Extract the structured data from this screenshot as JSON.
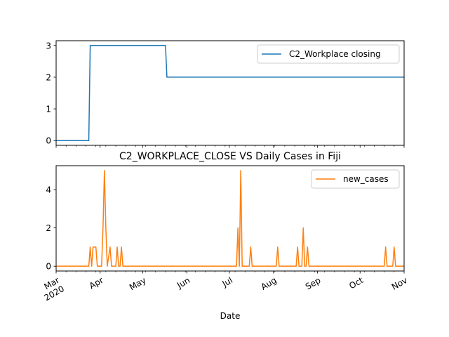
{
  "chart_data": [
    {
      "type": "line",
      "title": "",
      "xlabel": "",
      "ylabel": "",
      "x_range": [
        "2020-03-01",
        "2020-11-01"
      ],
      "ylim": [
        -0.15,
        3.15
      ],
      "y_ticks": [
        0,
        1,
        2,
        3
      ],
      "grid": false,
      "legend_position": "top-right",
      "series": [
        {
          "name": "C2_Workplace closing",
          "color": "#1f77b4",
          "points": [
            [
              "2020-03-01",
              0
            ],
            [
              "2020-03-24",
              0
            ],
            [
              "2020-03-25",
              3
            ],
            [
              "2020-05-17",
              3
            ],
            [
              "2020-05-18",
              2
            ],
            [
              "2020-11-01",
              2
            ]
          ]
        }
      ]
    },
    {
      "type": "line",
      "title": "C2_WORKPLACE_CLOSE VS Daily Cases in Fiji",
      "xlabel": "Date",
      "ylabel": "",
      "x_range": [
        "2020-03-01",
        "2020-11-01"
      ],
      "ylim": [
        -0.25,
        5.25
      ],
      "y_ticks": [
        0,
        2,
        4
      ],
      "grid": false,
      "legend_position": "top-right",
      "x_tick_labels": [
        {
          "date": "2020-03-01",
          "label": "Mar",
          "sub": "2020"
        },
        {
          "date": "2020-04-01",
          "label": "Apr",
          "sub": ""
        },
        {
          "date": "2020-05-01",
          "label": "May",
          "sub": ""
        },
        {
          "date": "2020-06-01",
          "label": "Jun",
          "sub": ""
        },
        {
          "date": "2020-07-01",
          "label": "Jul",
          "sub": ""
        },
        {
          "date": "2020-08-01",
          "label": "Aug",
          "sub": ""
        },
        {
          "date": "2020-09-01",
          "label": "Sep",
          "sub": ""
        },
        {
          "date": "2020-10-01",
          "label": "Oct",
          "sub": ""
        },
        {
          "date": "2020-11-01",
          "label": "Nov",
          "sub": ""
        }
      ],
      "series": [
        {
          "name": "new_cases",
          "color": "#ff7f0e",
          "points": [
            [
              "2020-03-01",
              0
            ],
            [
              "2020-03-24",
              0
            ],
            [
              "2020-03-25",
              1
            ],
            [
              "2020-03-26",
              0
            ],
            [
              "2020-03-27",
              1
            ],
            [
              "2020-03-28",
              1
            ],
            [
              "2020-03-29",
              1
            ],
            [
              "2020-03-30",
              0
            ],
            [
              "2020-04-02",
              0
            ],
            [
              "2020-04-03",
              2
            ],
            [
              "2020-04-04",
              5
            ],
            [
              "2020-04-05",
              2
            ],
            [
              "2020-04-06",
              0
            ],
            [
              "2020-04-08",
              1
            ],
            [
              "2020-04-09",
              0
            ],
            [
              "2020-04-12",
              0
            ],
            [
              "2020-04-13",
              1
            ],
            [
              "2020-04-14",
              0
            ],
            [
              "2020-04-15",
              0
            ],
            [
              "2020-04-16",
              1
            ],
            [
              "2020-04-17",
              0
            ],
            [
              "2020-07-06",
              0
            ],
            [
              "2020-07-07",
              2
            ],
            [
              "2020-07-08",
              0
            ],
            [
              "2020-07-09",
              5
            ],
            [
              "2020-07-10",
              0
            ],
            [
              "2020-07-15",
              0
            ],
            [
              "2020-07-16",
              1
            ],
            [
              "2020-07-17",
              0
            ],
            [
              "2020-08-03",
              0
            ],
            [
              "2020-08-04",
              1
            ],
            [
              "2020-08-05",
              0
            ],
            [
              "2020-08-17",
              0
            ],
            [
              "2020-08-18",
              1
            ],
            [
              "2020-08-19",
              0
            ],
            [
              "2020-08-21",
              0
            ],
            [
              "2020-08-22",
              2
            ],
            [
              "2020-08-23",
              0
            ],
            [
              "2020-08-24",
              0
            ],
            [
              "2020-08-25",
              1
            ],
            [
              "2020-08-26",
              0
            ],
            [
              "2020-10-18",
              0
            ],
            [
              "2020-10-19",
              1
            ],
            [
              "2020-10-20",
              0
            ],
            [
              "2020-10-24",
              0
            ],
            [
              "2020-10-25",
              1
            ],
            [
              "2020-10-26",
              0
            ],
            [
              "2020-11-01",
              0
            ]
          ]
        }
      ]
    }
  ]
}
